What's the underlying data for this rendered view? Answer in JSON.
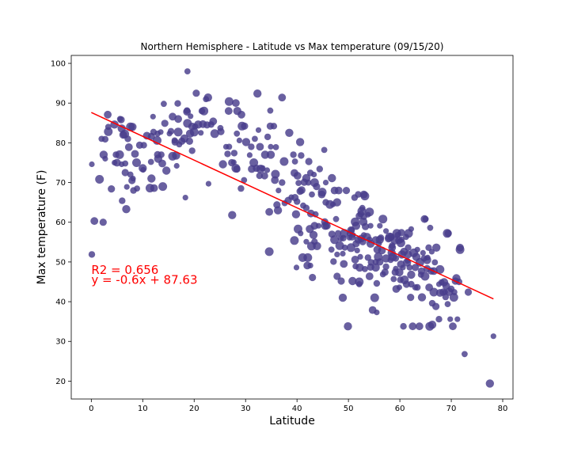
{
  "chart_data": {
    "type": "scatter",
    "title": "Northern Hemisphere - Latitude vs Max temperature (09/15/20)",
    "xlabel": "Latitude",
    "ylabel": "Max temperature (F)",
    "xlim": [
      -3.9,
      82
    ],
    "ylim": [
      15.5,
      102
    ],
    "xticks": [
      0,
      10,
      20,
      30,
      40,
      50,
      60,
      70,
      80
    ],
    "yticks": [
      20,
      30,
      40,
      50,
      60,
      70,
      80,
      90,
      100
    ],
    "grid": false,
    "marker_color": "#483d8b",
    "line_color": "#ff0000",
    "annotation_color": "#ff0000",
    "regression": {
      "slope": -0.6,
      "intercept": 87.63,
      "x_range": [
        0,
        78.2
      ]
    },
    "annotations": [
      "y = -0.6x + 87.63",
      "R2 = 0.656"
    ],
    "points": [
      [
        0.1,
        74.6
      ],
      [
        0.1,
        51.9
      ],
      [
        0.6,
        60.3
      ],
      [
        1.6,
        70.8
      ],
      [
        2,
        81
      ],
      [
        2.3,
        60
      ],
      [
        2.4,
        77
      ],
      [
        2.7,
        76
      ],
      [
        2.7,
        80.9
      ],
      [
        3.2,
        87.1
      ],
      [
        3.3,
        82.8
      ],
      [
        3.3,
        84
      ],
      [
        3.9,
        68.4
      ],
      [
        4.5,
        84.6
      ],
      [
        4.5,
        75
      ],
      [
        4.8,
        77
      ],
      [
        5,
        75
      ],
      [
        5.5,
        77
      ],
      [
        5.6,
        86
      ],
      [
        5.8,
        85.8
      ],
      [
        5.9,
        83.6
      ],
      [
        5.9,
        74.6
      ],
      [
        6,
        65.4
      ],
      [
        6.2,
        82
      ],
      [
        6.5,
        82.2
      ],
      [
        6.6,
        74.8
      ],
      [
        6.6,
        72.5
      ],
      [
        6.8,
        63.3
      ],
      [
        6.9,
        68.9
      ],
      [
        7.1,
        81
      ],
      [
        7.3,
        78.9
      ],
      [
        7.6,
        84
      ],
      [
        7.6,
        72
      ],
      [
        7.9,
        70.5
      ],
      [
        8,
        84
      ],
      [
        8.1,
        71
      ],
      [
        8.2,
        68
      ],
      [
        8.5,
        77.2
      ],
      [
        8.8,
        75
      ],
      [
        8.9,
        68.5
      ],
      [
        9.4,
        79.4
      ],
      [
        10,
        73.6
      ],
      [
        10.1,
        73.2
      ],
      [
        10.2,
        79.4
      ],
      [
        10.8,
        81.8
      ],
      [
        11.4,
        68.6
      ],
      [
        11.6,
        75.2
      ],
      [
        11.7,
        81.6
      ],
      [
        11.7,
        71
      ],
      [
        12,
        86.6
      ],
      [
        12.1,
        82.7
      ],
      [
        12.2,
        68.6
      ],
      [
        12.8,
        80.6
      ],
      [
        12.9,
        82.3
      ],
      [
        12.9,
        77
      ],
      [
        13,
        76
      ],
      [
        13.5,
        82.7
      ],
      [
        13.6,
        77
      ],
      [
        13.8,
        74.8
      ],
      [
        13.9,
        69
      ],
      [
        14.1,
        89.8
      ],
      [
        14.3,
        84.9
      ],
      [
        14.6,
        73
      ],
      [
        15.2,
        82.3
      ],
      [
        15.5,
        82.9
      ],
      [
        15.8,
        86.6
      ],
      [
        15.8,
        76.6
      ],
      [
        16.2,
        80.6
      ],
      [
        16.3,
        80.2
      ],
      [
        16.5,
        76.8
      ],
      [
        16.6,
        74.2
      ],
      [
        16.8,
        89.9
      ],
      [
        16.9,
        86
      ],
      [
        16.9,
        82.7
      ],
      [
        17.1,
        79.6
      ],
      [
        17.6,
        80.4
      ],
      [
        18.1,
        81.1
      ],
      [
        18.3,
        66.2
      ],
      [
        18.6,
        88.1
      ],
      [
        18.6,
        87.8
      ],
      [
        18.7,
        84.9
      ],
      [
        18.7,
        98
      ],
      [
        19.1,
        80.4
      ],
      [
        19.2,
        82.3
      ],
      [
        19.3,
        86.7
      ],
      [
        19.6,
        78
      ],
      [
        19.6,
        84.1
      ],
      [
        20,
        82.7
      ],
      [
        20.2,
        84.1
      ],
      [
        20.4,
        92.5
      ],
      [
        20.8,
        84.6
      ],
      [
        21.3,
        82.5
      ],
      [
        21.5,
        88
      ],
      [
        21.7,
        84.7
      ],
      [
        21.9,
        88
      ],
      [
        22.3,
        91
      ],
      [
        22.5,
        84.5
      ],
      [
        22.7,
        91.4
      ],
      [
        22.8,
        69.7
      ],
      [
        23.3,
        84.6
      ],
      [
        23.7,
        85.4
      ],
      [
        24,
        82.3
      ],
      [
        25.1,
        83.7
      ],
      [
        25.2,
        82.8
      ],
      [
        25.6,
        74.6
      ],
      [
        26.2,
        79
      ],
      [
        26.5,
        77.2
      ],
      [
        26.7,
        88
      ],
      [
        26.8,
        90.4
      ],
      [
        26.8,
        79
      ],
      [
        27.3,
        75
      ],
      [
        27.4,
        61.8
      ],
      [
        27.7,
        75.1
      ],
      [
        27.8,
        77.4
      ],
      [
        28.1,
        90
      ],
      [
        28.1,
        73.6
      ],
      [
        28.3,
        82.3
      ],
      [
        28.3,
        73.4
      ],
      [
        28.4,
        88
      ],
      [
        28.8,
        80.6
      ],
      [
        29.1,
        68.5
      ],
      [
        29.2,
        87.1
      ],
      [
        29.3,
        84.2
      ],
      [
        29.7,
        70.6
      ],
      [
        29.8,
        84.2
      ],
      [
        30.1,
        80.2
      ],
      [
        30.8,
        76.9
      ],
      [
        31.1,
        79
      ],
      [
        31.2,
        73.4
      ],
      [
        31.6,
        75
      ],
      [
        31.8,
        81
      ],
      [
        32.1,
        73.6
      ],
      [
        32.3,
        92.4
      ],
      [
        32.5,
        83.2
      ],
      [
        32.7,
        71.7
      ],
      [
        32.8,
        79
      ],
      [
        32.9,
        73.4
      ],
      [
        33.3,
        73.6
      ],
      [
        33.7,
        71.7
      ],
      [
        33.8,
        77
      ],
      [
        34.2,
        73.1
      ],
      [
        34.3,
        81.5
      ],
      [
        34.6,
        62.6
      ],
      [
        34.6,
        52.6
      ],
      [
        34.8,
        88.1
      ],
      [
        34.8,
        84.2
      ],
      [
        34.9,
        77
      ],
      [
        34.9,
        79
      ],
      [
        35.5,
        84.2
      ],
      [
        35.7,
        70.6
      ],
      [
        35.8,
        72.1
      ],
      [
        35.9,
        78.9
      ],
      [
        36.1,
        64.4
      ],
      [
        36.3,
        63
      ],
      [
        36.4,
        68
      ],
      [
        37.1,
        70
      ],
      [
        37.1,
        91.4
      ],
      [
        37.5,
        75.3
      ],
      [
        37.6,
        64.8
      ],
      [
        38.3,
        65.5
      ],
      [
        38.5,
        82.5
      ],
      [
        38.9,
        66.3
      ],
      [
        39.3,
        77
      ],
      [
        39.5,
        72.4
      ],
      [
        39.5,
        55.4
      ],
      [
        39.6,
        75.3
      ],
      [
        39.6,
        66.2
      ],
      [
        39.8,
        62
      ],
      [
        39.9,
        48.6
      ],
      [
        40,
        65.2
      ],
      [
        40.1,
        71.7
      ],
      [
        40.2,
        58.3
      ],
      [
        40.3,
        69.9
      ],
      [
        40.6,
        67.8
      ],
      [
        40.6,
        80.2
      ],
      [
        40.7,
        57.2
      ],
      [
        40.8,
        76.8
      ],
      [
        40.9,
        68.1
      ],
      [
        41.1,
        51.1
      ],
      [
        41.2,
        64.2
      ],
      [
        41.4,
        70.1
      ],
      [
        41.8,
        71.1
      ],
      [
        41.8,
        55.1
      ],
      [
        41.8,
        63.6
      ],
      [
        42,
        49.1
      ],
      [
        42.1,
        51.1
      ],
      [
        42.2,
        70
      ],
      [
        42.3,
        75.3
      ],
      [
        42.5,
        58.3
      ],
      [
        42.6,
        49.1
      ],
      [
        42.6,
        72.4
      ],
      [
        42.7,
        62.2
      ],
      [
        42.8,
        54
      ],
      [
        42.9,
        67
      ],
      [
        43,
        46.1
      ],
      [
        43.2,
        56.8
      ],
      [
        43.3,
        72
      ],
      [
        43.4,
        55.1
      ],
      [
        43.4,
        59.1
      ],
      [
        43.4,
        70
      ],
      [
        43.6,
        62
      ],
      [
        43.8,
        69
      ],
      [
        43.9,
        54
      ],
      [
        44.2,
        59.1
      ],
      [
        44.4,
        73.4
      ],
      [
        44.8,
        67
      ],
      [
        44.9,
        67.6
      ],
      [
        45.3,
        78.2
      ],
      [
        45.4,
        60.1
      ],
      [
        45.5,
        59.1
      ],
      [
        45.6,
        70
      ],
      [
        45.6,
        65
      ],
      [
        45.8,
        59.1
      ],
      [
        46.4,
        64.5
      ],
      [
        46.7,
        53.1
      ],
      [
        46.8,
        57
      ],
      [
        46.8,
        71.1
      ],
      [
        47,
        64.5
      ],
      [
        47.1,
        50.1
      ],
      [
        47.3,
        68
      ],
      [
        47.3,
        55.6
      ],
      [
        47.6,
        60.8
      ],
      [
        47.8,
        46.4
      ],
      [
        47.8,
        65
      ],
      [
        47.8,
        51.9
      ],
      [
        48,
        57.2
      ],
      [
        48.1,
        68
      ],
      [
        48.3,
        54.1
      ],
      [
        48.5,
        55.9
      ],
      [
        48.6,
        45.2
      ],
      [
        48.9,
        41
      ],
      [
        48.9,
        52.1
      ],
      [
        49,
        56
      ],
      [
        49.1,
        49.5
      ],
      [
        49.2,
        57.2
      ],
      [
        49.3,
        53.6
      ],
      [
        49.6,
        68
      ],
      [
        49.9,
        33.8
      ],
      [
        50.2,
        56.1
      ],
      [
        50.3,
        57.2
      ],
      [
        50.5,
        58
      ],
      [
        50.5,
        53.6
      ],
      [
        50.6,
        58
      ],
      [
        50.7,
        56.3
      ],
      [
        50.8,
        45.2
      ],
      [
        50.9,
        56.8
      ],
      [
        51.2,
        66.2
      ],
      [
        51.3,
        50.6
      ],
      [
        51.3,
        60.1
      ],
      [
        51.4,
        48.9
      ],
      [
        51.5,
        54.6
      ],
      [
        51.5,
        59.1
      ],
      [
        51.7,
        52.9
      ],
      [
        51.9,
        67
      ],
      [
        51.9,
        55.6
      ],
      [
        52.1,
        45
      ],
      [
        52.1,
        44.4
      ],
      [
        52.1,
        61.6
      ],
      [
        52.2,
        48.6
      ],
      [
        52.3,
        51.3
      ],
      [
        52.4,
        62.1
      ],
      [
        52.5,
        55.9
      ],
      [
        52.6,
        62.8
      ],
      [
        52.7,
        63.6
      ],
      [
        52.8,
        55.1
      ],
      [
        52.9,
        60.1
      ],
      [
        53,
        56.8
      ],
      [
        53,
        61.4
      ],
      [
        53,
        67
      ],
      [
        53.2,
        66.6
      ],
      [
        53.2,
        48.2
      ],
      [
        53.3,
        58.9
      ],
      [
        53.6,
        56.3
      ],
      [
        53.8,
        61.9
      ],
      [
        53.8,
        51.1
      ],
      [
        54.1,
        46.4
      ],
      [
        54.1,
        62.6
      ],
      [
        54.1,
        55.6
      ],
      [
        54.3,
        48.7
      ],
      [
        54.3,
        54.6
      ],
      [
        54.3,
        59.1
      ],
      [
        54.4,
        49.9
      ],
      [
        54.7,
        37.9
      ],
      [
        55.1,
        41
      ],
      [
        55.3,
        50
      ],
      [
        55.3,
        55.6
      ],
      [
        55.3,
        48.6
      ],
      [
        55.5,
        37.3
      ],
      [
        55.5,
        44.6
      ],
      [
        55.6,
        53.1
      ],
      [
        55.8,
        51.3
      ],
      [
        55.9,
        54.6
      ],
      [
        56.1,
        50
      ],
      [
        56.1,
        55.6
      ],
      [
        56.1,
        59.1
      ],
      [
        56.3,
        56.1
      ],
      [
        56.5,
        52.9
      ],
      [
        56.7,
        60.8
      ],
      [
        56.7,
        46.9
      ],
      [
        57.1,
        47.4
      ],
      [
        57.3,
        50.9
      ],
      [
        57.3,
        57.8
      ],
      [
        57.3,
        48.8
      ],
      [
        57.8,
        55.9
      ],
      [
        58,
        56.3
      ],
      [
        58.2,
        50.5
      ],
      [
        58.3,
        56.4
      ],
      [
        58.4,
        52.3
      ],
      [
        58.4,
        56.1
      ],
      [
        58.5,
        54.1
      ],
      [
        58.5,
        53.6
      ],
      [
        58.6,
        51.3
      ],
      [
        58.8,
        45.7
      ],
      [
        59.1,
        47.4
      ],
      [
        59,
        55.4
      ],
      [
        59.2,
        48.3
      ],
      [
        59.2,
        50.9
      ],
      [
        59.3,
        43.2
      ],
      [
        59.4,
        57.2
      ],
      [
        59.6,
        56.8
      ],
      [
        59.8,
        55.4
      ],
      [
        59.9,
        47.4
      ],
      [
        59.9,
        43.6
      ],
      [
        60.1,
        45.5
      ],
      [
        60.2,
        49.4
      ],
      [
        60.2,
        54.8
      ],
      [
        60.3,
        55.6
      ],
      [
        60.3,
        57.4
      ],
      [
        60.4,
        51.9
      ],
      [
        60.6,
        48.6
      ],
      [
        60.7,
        33.8
      ],
      [
        60.8,
        52.6
      ],
      [
        60.9,
        45.5
      ],
      [
        61.2,
        56.3
      ],
      [
        61.3,
        44.4
      ],
      [
        61.4,
        49.9
      ],
      [
        61.5,
        50.3
      ],
      [
        61.6,
        53.6
      ],
      [
        61.6,
        51.9
      ],
      [
        61.7,
        57.2
      ],
      [
        61.9,
        48.6
      ],
      [
        62.1,
        41.1
      ],
      [
        62.2,
        46.8
      ],
      [
        62.2,
        58.3
      ],
      [
        62.2,
        44.4
      ],
      [
        62.5,
        33.8
      ],
      [
        62.7,
        52.3
      ],
      [
        63,
        43.6
      ],
      [
        63,
        48.6
      ],
      [
        63.2,
        51.3
      ],
      [
        63.4,
        53.1
      ],
      [
        63.4,
        43.6
      ],
      [
        63.8,
        33.8
      ],
      [
        63.9,
        49.9
      ],
      [
        64.1,
        46.8
      ],
      [
        64.2,
        47.7
      ],
      [
        64.3,
        41.1
      ],
      [
        64.5,
        52.3
      ],
      [
        64.7,
        50.9
      ],
      [
        64.8,
        60.8
      ],
      [
        64.9,
        46.4
      ],
      [
        65,
        60.8
      ],
      [
        65.3,
        48.3
      ],
      [
        65.3,
        50.5
      ],
      [
        65.4,
        51.1
      ],
      [
        65.6,
        53.6
      ],
      [
        65.7,
        43.6
      ],
      [
        65.8,
        33.8
      ],
      [
        65.9,
        58.6
      ],
      [
        66.1,
        47.7
      ],
      [
        66.3,
        34.2
      ],
      [
        66.2,
        52.6
      ],
      [
        66.3,
        39.6
      ],
      [
        66.6,
        47.7
      ],
      [
        66.6,
        42.4
      ],
      [
        66.8,
        49.9
      ],
      [
        67,
        38.8
      ],
      [
        67.1,
        53.6
      ],
      [
        67.6,
        44.4
      ],
      [
        67.6,
        35.6
      ],
      [
        67.8,
        42.2
      ],
      [
        67.8,
        48.1
      ],
      [
        68.1,
        44.9
      ],
      [
        68.4,
        42.4
      ],
      [
        68.6,
        44.9
      ],
      [
        68.8,
        42.4
      ],
      [
        68.9,
        41.2
      ],
      [
        69,
        44
      ],
      [
        69.2,
        57.2
      ],
      [
        69.3,
        39.4
      ],
      [
        69.4,
        57.2
      ],
      [
        69.6,
        42.5
      ],
      [
        69.8,
        35.6
      ],
      [
        70,
        43.2
      ],
      [
        70.3,
        33.8
      ],
      [
        70.5,
        41.1
      ],
      [
        70.6,
        42.4
      ],
      [
        70.8,
        45.2
      ],
      [
        71,
        45.9
      ],
      [
        71.2,
        35.6
      ],
      [
        71.5,
        45
      ],
      [
        71.7,
        53.6
      ],
      [
        71.7,
        53.1
      ],
      [
        72.6,
        26.8
      ],
      [
        73.3,
        42.4
      ],
      [
        77.5,
        19.4
      ],
      [
        78.2,
        31.3
      ]
    ]
  }
}
